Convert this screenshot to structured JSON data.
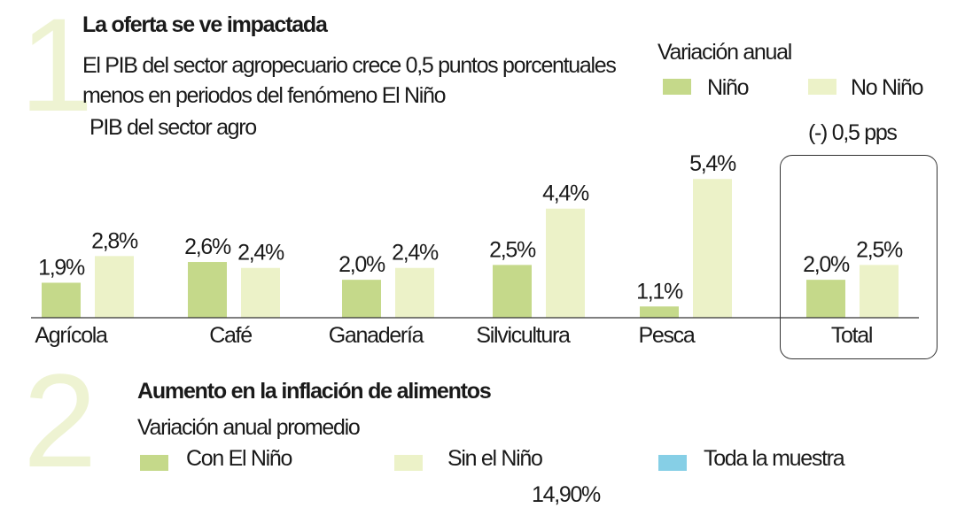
{
  "section1": {
    "number": "1",
    "title": "La oferta se ve impactada",
    "subtitle_line1": "El PIB del sector agropecuario crece 0,5 puntos porcentuales",
    "subtitle_line2": "menos en periodos del fenómeno El Niño",
    "chart_label": "PIB del sector agro",
    "legend_title": "Variación anual",
    "total_note": "(-) 0,5 pps"
  },
  "section2": {
    "number": "2",
    "title": "Aumento en la inflación de alimentos",
    "subtitle": "Variación anual promedio",
    "legend": [
      "Con El Niño",
      "Sin el Niño",
      "Toda la muestra"
    ],
    "partial_value": "14,90%"
  },
  "colors": {
    "nino": "#c5d98a",
    "no_nino": "#ecf2c8",
    "toda_muestra": "#86cfe6"
  },
  "chart_data": {
    "type": "bar",
    "categories": [
      "Agrícola",
      "Café",
      "Ganadería",
      "Silvicultura",
      "Pesca",
      "Total"
    ],
    "series": [
      {
        "name": "Niño",
        "values": [
          1.9,
          2.6,
          2.0,
          2.5,
          1.1,
          2.0
        ],
        "labels": [
          "1,9%",
          "2,6%",
          "2,0%",
          "2,5%",
          "1,1%",
          "2,0%"
        ]
      },
      {
        "name": "No Niño",
        "values": [
          2.8,
          2.4,
          2.4,
          4.4,
          5.4,
          2.5
        ],
        "labels": [
          "2,8%",
          "2,4%",
          "2,4%",
          "4,4%",
          "5,4%",
          "2,5%"
        ]
      }
    ],
    "legend_position": "top-right",
    "grid": false
  }
}
